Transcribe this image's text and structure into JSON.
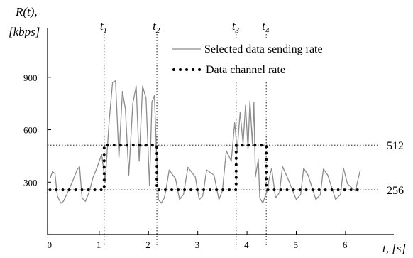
{
  "chart_data": {
    "type": "line",
    "y_title": "R(t),",
    "y_unit": "[kbps]",
    "x_title": "t, [s]",
    "xlim": [
      -0.05,
      6.65
    ],
    "ylim": [
      0,
      1180
    ],
    "x_ticks": [
      "0",
      "1",
      "2",
      "3",
      "4",
      "5",
      "6"
    ],
    "y_ticks": [
      "300",
      "600",
      "900"
    ],
    "y_tick_values": [
      300,
      600,
      900
    ],
    "ref_lines": [
      {
        "value": 512,
        "label": "512"
      },
      {
        "value": 256,
        "label": "256"
      }
    ],
    "time_markers": [
      {
        "name": "t",
        "sub": "1",
        "x": 1.1
      },
      {
        "name": "t",
        "sub": "2",
        "x": 2.17
      },
      {
        "name": "t",
        "sub": "3",
        "x": 3.78
      },
      {
        "name": "t",
        "sub": "4",
        "x": 4.39
      }
    ],
    "legend": {
      "position": "top-right"
    },
    "series": [
      {
        "name": "Selected data sending rate",
        "style": "solid",
        "color": "#8c8c8c",
        "x": [
          0.0,
          0.05,
          0.1,
          0.15,
          0.22,
          0.27,
          0.34,
          0.45,
          0.55,
          0.6,
          0.65,
          0.72,
          0.79,
          0.83,
          0.87,
          0.95,
          1.05,
          1.12,
          1.2,
          1.27,
          1.33,
          1.4,
          1.47,
          1.53,
          1.6,
          1.68,
          1.75,
          1.81,
          1.88,
          1.95,
          2.02,
          2.07,
          2.12,
          2.18,
          2.2,
          2.26,
          2.32,
          2.35,
          2.42,
          2.55,
          2.63,
          2.71,
          2.8,
          2.95,
          3.03,
          3.1,
          3.18,
          3.33,
          3.43,
          3.5,
          3.58,
          3.68,
          3.75,
          3.8,
          3.86,
          3.92,
          3.97,
          4.02,
          4.06,
          4.11,
          4.14,
          4.17,
          4.23,
          4.26,
          4.32,
          4.37,
          4.42,
          4.45,
          4.5,
          4.58,
          4.66,
          4.72,
          4.83,
          5.0,
          5.09,
          5.15,
          5.24,
          5.4,
          5.49,
          5.55,
          5.64,
          5.8,
          5.9,
          5.96,
          6.04,
          6.2,
          6.3
        ],
        "values": [
          320,
          360,
          350,
          220,
          180,
          190,
          230,
          300,
          370,
          390,
          210,
          190,
          240,
          280,
          325,
          380,
          460,
          300,
          650,
          870,
          880,
          440,
          820,
          720,
          340,
          750,
          850,
          420,
          850,
          780,
          280,
          760,
          795,
          330,
          200,
          180,
          210,
          250,
          370,
          320,
          200,
          230,
          385,
          330,
          200,
          220,
          370,
          340,
          200,
          250,
          480,
          420,
          640,
          480,
          700,
          520,
          740,
          490,
          765,
          520,
          755,
          330,
          430,
          210,
          180,
          220,
          260,
          320,
          380,
          210,
          240,
          390,
          320,
          200,
          230,
          380,
          340,
          200,
          230,
          375,
          340,
          200,
          230,
          380,
          290,
          250,
          370
        ]
      },
      {
        "name": "Data channel rate",
        "style": "dotted",
        "color": "#000000",
        "x": [
          0.0,
          1.1,
          1.1,
          2.17,
          2.17,
          3.78,
          3.78,
          4.39,
          4.39,
          6.3
        ],
        "values": [
          256,
          256,
          512,
          512,
          256,
          256,
          512,
          512,
          256,
          256
        ]
      }
    ]
  }
}
